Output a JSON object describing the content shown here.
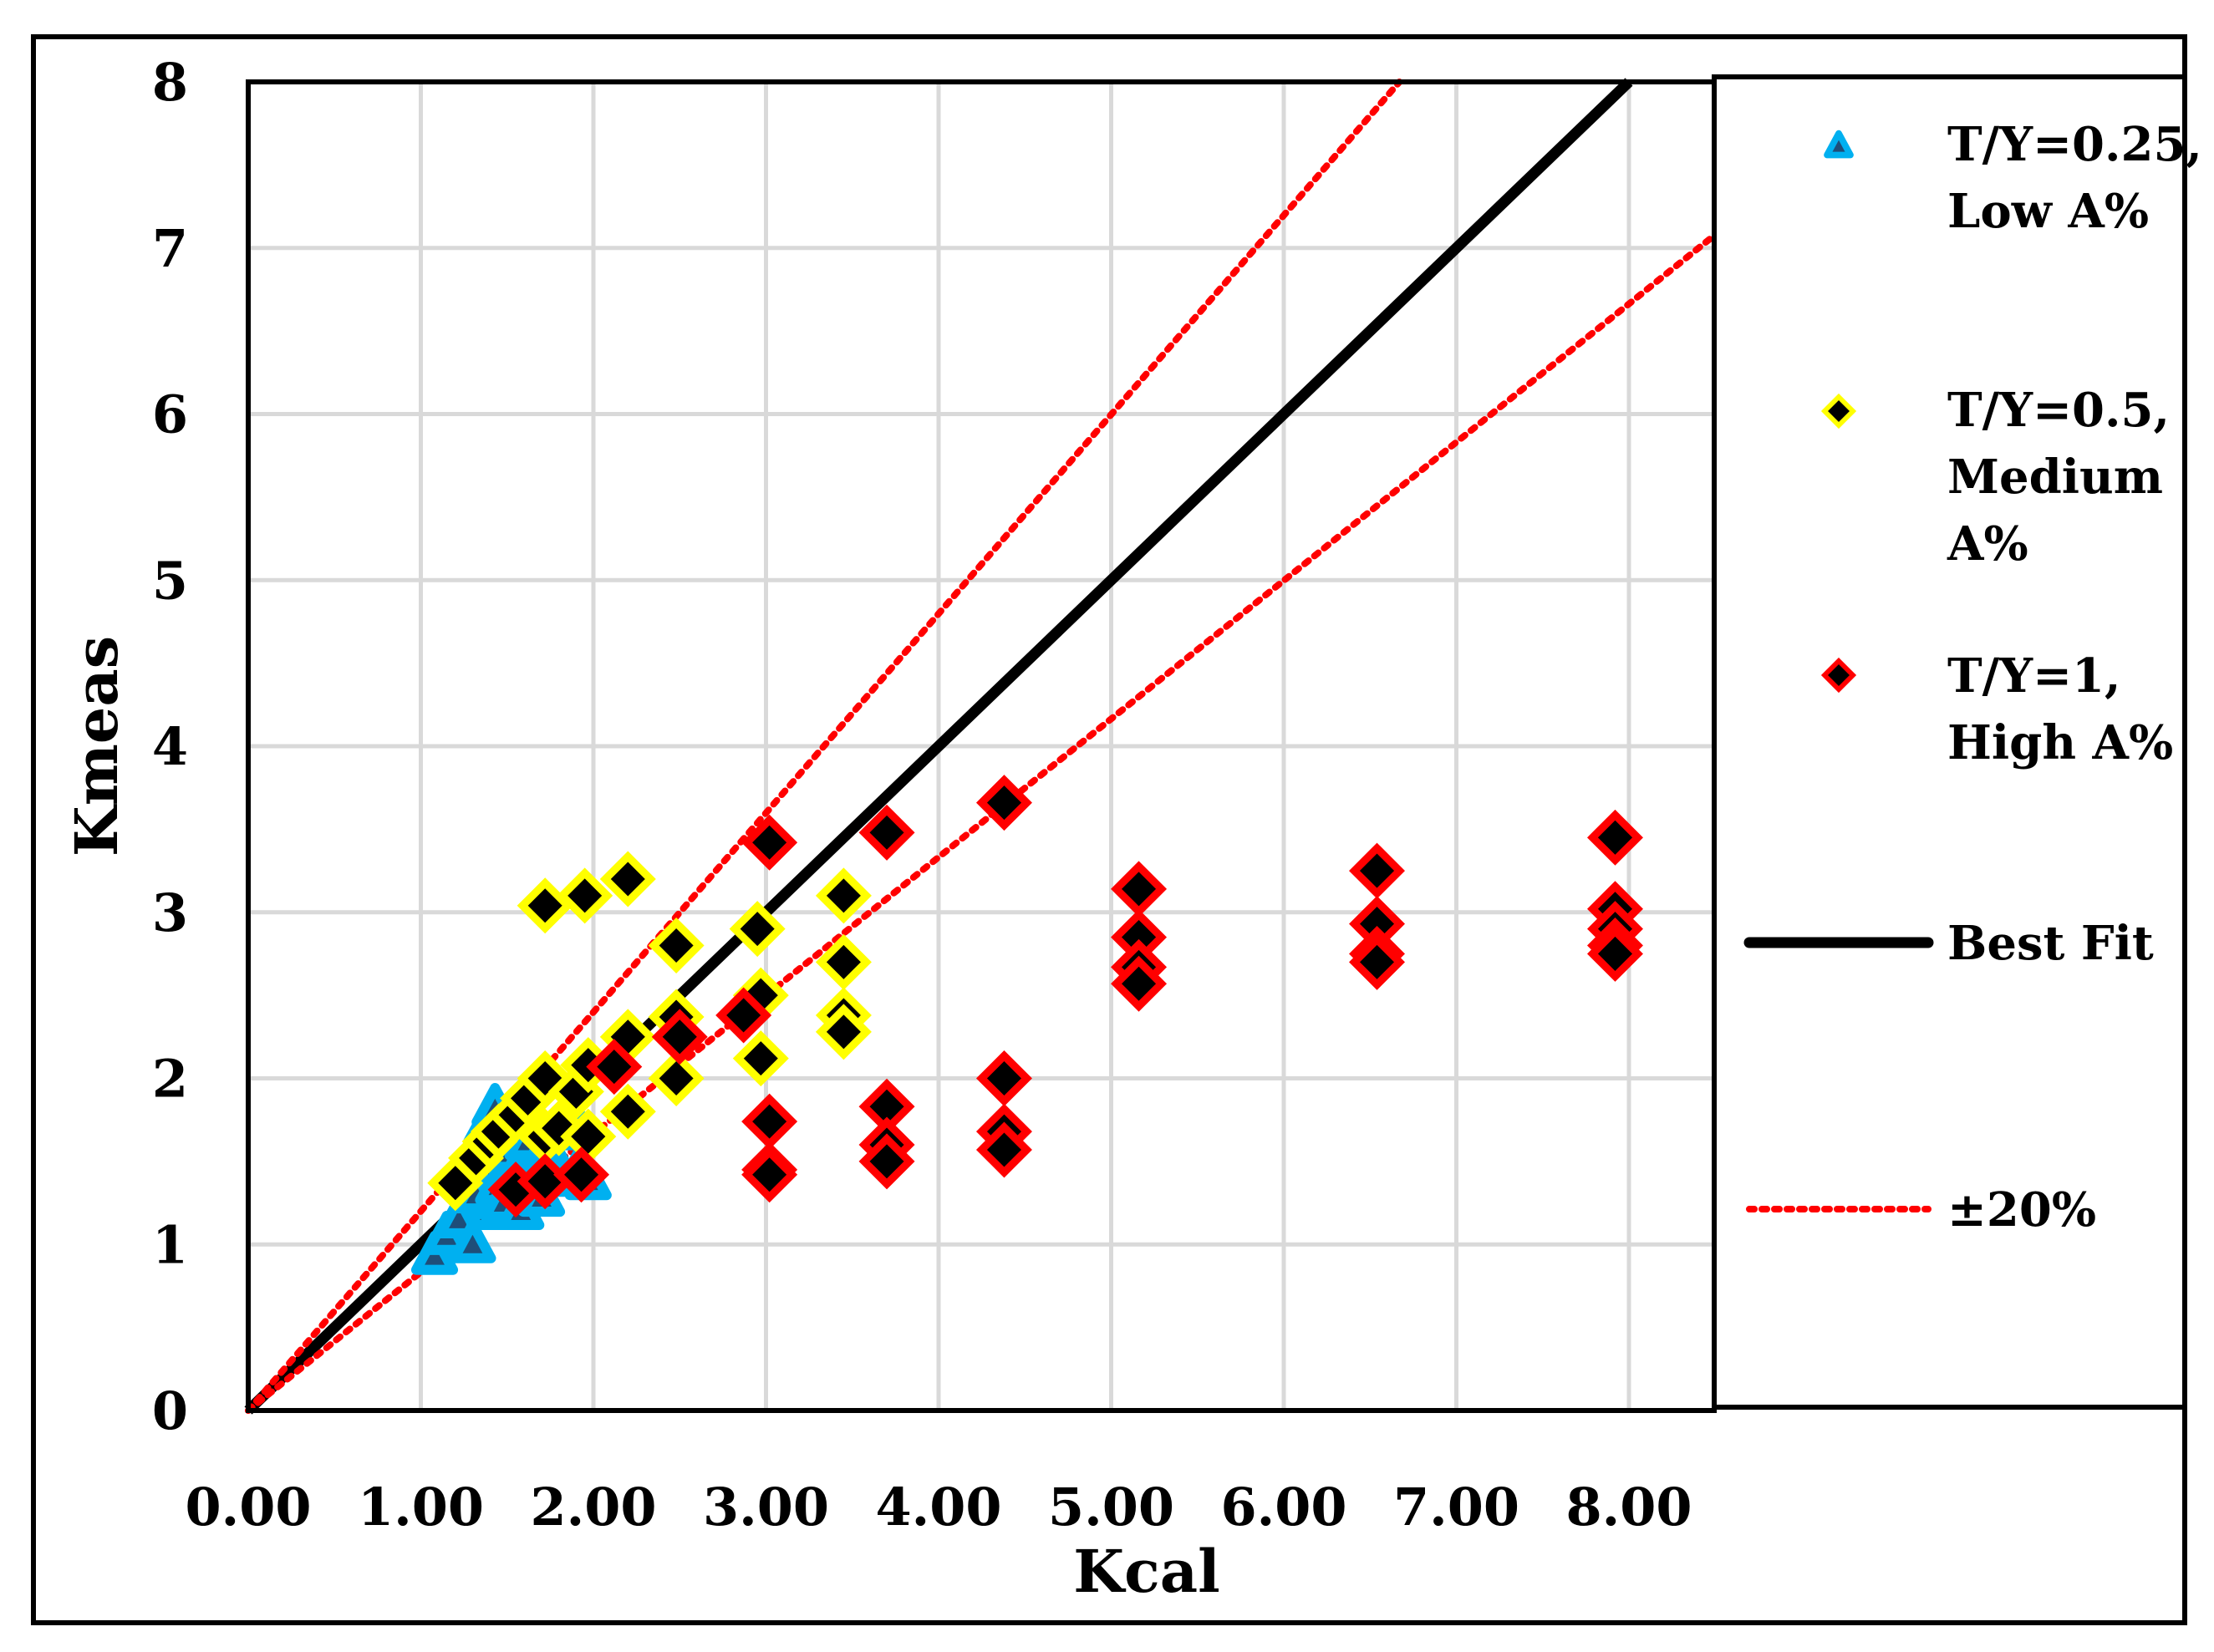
{
  "chart_data": {
    "type": "scatter",
    "title": "",
    "xlabel": "Kcal",
    "ylabel": "Kmeas",
    "xlim": [
      0,
      8.5
    ],
    "ylim": [
      0,
      8
    ],
    "x_ticks": [
      "0.00",
      "1.00",
      "2.00",
      "3.00",
      "4.00",
      "5.00",
      "6.00",
      "7.00",
      "8.00"
    ],
    "y_ticks": [
      "0",
      "1",
      "2",
      "3",
      "4",
      "5",
      "6",
      "7",
      "8"
    ],
    "grid": true,
    "legend_position": "right",
    "series": [
      {
        "name": "T/Y=0.25, Low A%",
        "legend_lines": [
          "T/Y=0.25,",
          "Low A%"
        ],
        "marker": "triangle",
        "color": "#00b0f0",
        "inner_color": "#1f4e79",
        "points": [
          [
            1.08,
            0.93
          ],
          [
            1.15,
            1.05
          ],
          [
            1.22,
            1.15
          ],
          [
            1.28,
            1.45
          ],
          [
            1.3,
            1.0
          ],
          [
            1.32,
            1.3
          ],
          [
            1.35,
            1.55
          ],
          [
            1.38,
            1.7
          ],
          [
            1.4,
            1.2
          ],
          [
            1.43,
            1.82
          ],
          [
            1.45,
            1.35
          ],
          [
            1.48,
            1.25
          ],
          [
            1.52,
            1.55
          ],
          [
            1.55,
            1.42
          ],
          [
            1.58,
            1.2
          ],
          [
            1.62,
            1.62
          ],
          [
            1.65,
            1.35
          ],
          [
            1.7,
            1.28
          ],
          [
            1.73,
            1.58
          ],
          [
            1.78,
            1.4
          ],
          [
            1.82,
            1.68
          ],
          [
            1.88,
            1.75
          ],
          [
            1.92,
            1.45
          ],
          [
            1.97,
            1.38
          ]
        ]
      },
      {
        "name": "T/Y=0.5, Medium A%",
        "legend_lines": [
          "T/Y=0.5,",
          "Medium",
          "A%"
        ],
        "marker": "diamond",
        "color": "#ffff00",
        "inner_color": "#000000",
        "points": [
          [
            1.2,
            1.37
          ],
          [
            1.32,
            1.52
          ],
          [
            1.4,
            1.62
          ],
          [
            1.45,
            1.68
          ],
          [
            1.55,
            1.78
          ],
          [
            1.62,
            1.88
          ],
          [
            1.72,
            3.04
          ],
          [
            1.72,
            2.0
          ],
          [
            1.72,
            1.65
          ],
          [
            1.8,
            1.7
          ],
          [
            1.9,
            1.92
          ],
          [
            1.95,
            3.1
          ],
          [
            1.97,
            2.08
          ],
          [
            1.97,
            1.65
          ],
          [
            2.2,
            3.2
          ],
          [
            2.2,
            2.25
          ],
          [
            2.2,
            1.8
          ],
          [
            2.48,
            2.8
          ],
          [
            2.48,
            2.37
          ],
          [
            2.48,
            2.0
          ],
          [
            2.95,
            2.9
          ],
          [
            2.97,
            2.5
          ],
          [
            2.97,
            2.12
          ],
          [
            3.45,
            3.1
          ],
          [
            3.45,
            2.7
          ],
          [
            3.45,
            2.38
          ],
          [
            3.45,
            2.28
          ]
        ]
      },
      {
        "name": "T/Y=1, High A%",
        "legend_lines": [
          "T/Y=1,",
          "High A%"
        ],
        "marker": "diamond",
        "color": "#ff0000",
        "inner_color": "#000000",
        "points": [
          [
            1.55,
            1.33
          ],
          [
            1.72,
            1.38
          ],
          [
            1.93,
            1.42
          ],
          [
            2.12,
            2.07
          ],
          [
            2.5,
            2.25
          ],
          [
            2.87,
            2.38
          ],
          [
            3.02,
            3.42
          ],
          [
            3.02,
            1.74
          ],
          [
            3.02,
            1.45
          ],
          [
            3.02,
            1.42
          ],
          [
            3.7,
            3.48
          ],
          [
            3.7,
            1.83
          ],
          [
            3.7,
            1.6
          ],
          [
            3.7,
            1.5
          ],
          [
            4.38,
            3.66
          ],
          [
            4.38,
            2.0
          ],
          [
            4.38,
            1.68
          ],
          [
            4.38,
            1.57
          ],
          [
            5.16,
            3.14
          ],
          [
            5.16,
            2.85
          ],
          [
            5.16,
            2.67
          ],
          [
            5.16,
            2.57
          ],
          [
            6.54,
            3.25
          ],
          [
            6.54,
            2.93
          ],
          [
            6.54,
            2.75
          ],
          [
            6.54,
            2.7
          ],
          [
            7.92,
            3.45
          ],
          [
            7.92,
            3.02
          ],
          [
            7.92,
            2.9
          ],
          [
            7.92,
            2.8
          ],
          [
            7.92,
            2.75
          ]
        ]
      },
      {
        "name": "Best Fit",
        "legend_lines": [
          "Best Fit"
        ],
        "type": "line",
        "style": "solid",
        "color": "#000000",
        "x": [
          0,
          8
        ],
        "y": [
          0,
          8
        ]
      },
      {
        "name": "±20%",
        "legend_lines": [
          "±20%"
        ],
        "type": "line",
        "style": "dotted",
        "color": "#ff0000",
        "lines": [
          {
            "x": [
              0,
              6.67
            ],
            "y": [
              0,
              8
            ]
          },
          {
            "x": [
              0,
              8.5
            ],
            "y": [
              0,
              7.08
            ]
          }
        ]
      }
    ]
  }
}
